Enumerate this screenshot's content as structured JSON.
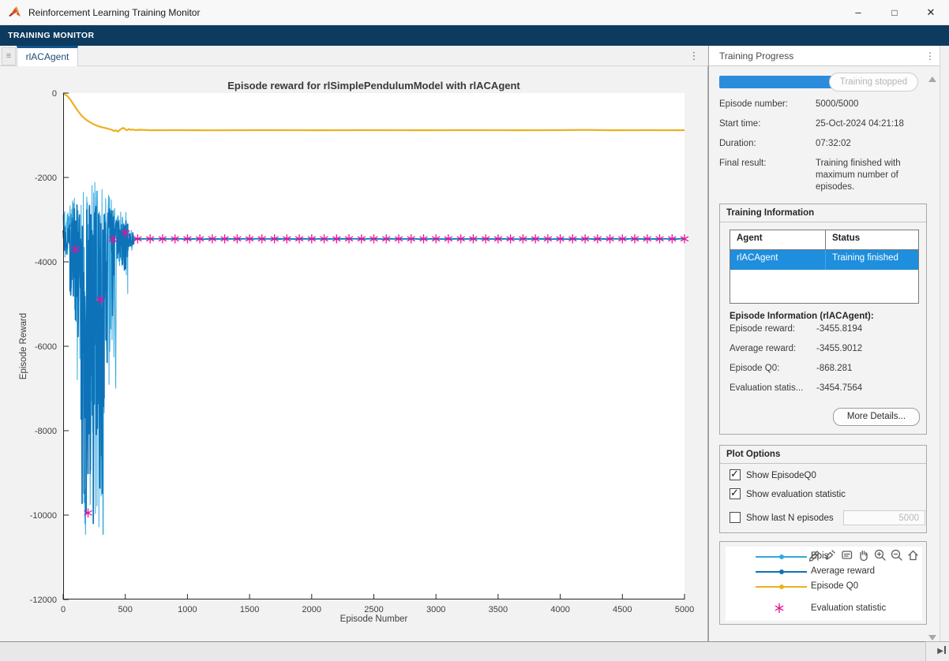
{
  "window": {
    "title": "Reinforcement Learning Training Monitor",
    "minimize": "–",
    "maximize": "□",
    "close": "✕"
  },
  "toolstrip": {
    "tab_label": "TRAINING MONITOR"
  },
  "doc_tabs": {
    "active_tab": "rlACAgent",
    "grip_glyph": "≡",
    "overflow_glyph": "⋮"
  },
  "colors": {
    "accent_navy": "#0d3a5f",
    "progress_blue": "#2a8cdb",
    "selected_row_blue": "#1e8edd",
    "episode_reward": "#35a8de",
    "average_reward": "#0d72b8",
    "episode_q0": "#edb120",
    "evaluation_statistic": "#e7119d"
  },
  "chart_data": {
    "type": "line",
    "title": "Episode reward for rlSimplePendulumModel with rlACAgent",
    "xlabel": "Episode Number",
    "ylabel": "Episode Reward",
    "xlim": [
      0,
      5000
    ],
    "ylim": [
      -12000,
      0
    ],
    "xticks": [
      0,
      500,
      1000,
      1500,
      2000,
      2500,
      3000,
      3500,
      4000,
      4500,
      5000
    ],
    "yticks": [
      0,
      -2000,
      -4000,
      -6000,
      -8000,
      -10000,
      -12000
    ],
    "grid": false,
    "background": "#ffffff",
    "segment_format": "[x_start, x_end, step, top_envelope, bottom_envelope, depth_bias, jitter]",
    "series": [
      {
        "name": "Episode reward",
        "color": "#35a8de",
        "width": 1,
        "seed": 7,
        "noise_segments": [
          [
            0,
            55,
            3,
            -2950,
            -3950,
            2.0,
            300
          ],
          [
            55,
            90,
            3,
            -2500,
            -5300,
            2.0,
            300
          ],
          [
            90,
            145,
            3,
            -2350,
            -7300,
            1.8,
            300
          ],
          [
            145,
            330,
            2.5,
            -2250,
            -10600,
            1.35,
            300
          ],
          [
            330,
            430,
            3,
            -2500,
            -7200,
            2.0,
            300
          ],
          [
            430,
            520,
            3,
            -2900,
            -4700,
            2.0,
            250
          ],
          [
            520,
            568,
            4,
            -3250,
            -3750,
            1.8,
            120
          ]
        ],
        "flat": {
          "from": 568,
          "to": 5000,
          "y": -3455.8,
          "jitter": 14
        }
      },
      {
        "name": "Average reward",
        "color": "#0d72b8",
        "width": 1.7,
        "seed": 99,
        "noise_segments": [
          [
            0,
            55,
            3,
            -3150,
            -3850,
            2.0,
            200
          ],
          [
            55,
            90,
            3,
            -2850,
            -4900,
            2.0,
            220
          ],
          [
            90,
            145,
            3,
            -2750,
            -6700,
            1.8,
            220
          ],
          [
            145,
            330,
            2.5,
            -2650,
            -10400,
            1.4,
            260
          ],
          [
            330,
            430,
            3,
            -2850,
            -6500,
            2.0,
            240
          ],
          [
            430,
            520,
            3,
            -3050,
            -4350,
            2.0,
            180
          ],
          [
            520,
            568,
            4,
            -3350,
            -3620,
            1.8,
            90
          ]
        ],
        "flat": {
          "from": 568,
          "to": 5000,
          "y": -3455.9,
          "jitter": 4
        }
      },
      {
        "name": "Episode Q0",
        "color": "#edb120",
        "width": 2.2,
        "points": [
          [
            0,
            -10
          ],
          [
            30,
            -60
          ],
          [
            60,
            -160
          ],
          [
            90,
            -300
          ],
          [
            120,
            -430
          ],
          [
            150,
            -540
          ],
          [
            180,
            -620
          ],
          [
            210,
            -680
          ],
          [
            240,
            -730
          ],
          [
            270,
            -770
          ],
          [
            300,
            -800
          ],
          [
            330,
            -820
          ],
          [
            360,
            -845
          ],
          [
            390,
            -870
          ],
          [
            410,
            -900
          ],
          [
            425,
            -880
          ],
          [
            440,
            -915
          ],
          [
            455,
            -875
          ],
          [
            470,
            -845
          ],
          [
            485,
            -825
          ],
          [
            500,
            -860
          ],
          [
            515,
            -880
          ],
          [
            530,
            -850
          ],
          [
            545,
            -875
          ],
          [
            560,
            -862
          ],
          [
            580,
            -878
          ],
          [
            620,
            -870
          ],
          [
            700,
            -880
          ],
          [
            900,
            -878
          ],
          [
            1200,
            -882
          ],
          [
            1600,
            -879
          ],
          [
            2000,
            -881
          ],
          [
            2400,
            -878
          ],
          [
            2800,
            -880
          ],
          [
            3200,
            -879
          ],
          [
            3600,
            -881
          ],
          [
            4000,
            -879
          ],
          [
            4200,
            -872
          ],
          [
            4400,
            -880
          ],
          [
            4700,
            -878
          ],
          [
            5000,
            -880
          ]
        ]
      }
    ],
    "markers": {
      "name": "Evaluation statistic",
      "color": "#e7119d",
      "shape": "asterisk",
      "points_early": [
        [
          100,
          -3700
        ],
        [
          200,
          -9950
        ],
        [
          300,
          -4890
        ],
        [
          400,
          -3470
        ],
        [
          500,
          -3310
        ]
      ],
      "flat_range": {
        "from": 600,
        "to": 5000,
        "step": 100,
        "y": -3455
      }
    }
  },
  "progress_panel": {
    "title": "Training Progress",
    "overflow_glyph": "⋮",
    "stop_button": "Training stopped",
    "progress_pct": 100,
    "rows": [
      {
        "label": "Episode number:",
        "value": "5000/5000"
      },
      {
        "label": "Start time:",
        "value": "25-Oct-2024 04:21:18"
      },
      {
        "label": "Duration:",
        "value": "07:32:02"
      },
      {
        "label": "Final result:",
        "value": "Training finished with maximum number of episodes."
      }
    ]
  },
  "training_info": {
    "title": "Training Information",
    "table": {
      "headers": [
        "Agent",
        "Status"
      ],
      "rows": [
        {
          "agent": "rlACAgent",
          "status": "Training finished",
          "selected": true
        }
      ]
    },
    "episode_info_title": "Episode Information (rlACAgent):",
    "rows": [
      {
        "label": "Episode reward:",
        "value": "-3455.8194"
      },
      {
        "label": "Average reward:",
        "value": "-3455.9012"
      },
      {
        "label": "Episode Q0:",
        "value": "-868.281"
      },
      {
        "label": "Evaluation statis...",
        "value": "-3454.7564"
      }
    ],
    "more_details_button": "More Details..."
  },
  "plot_options": {
    "title": "Plot Options",
    "checkboxes": [
      {
        "label": "Show EpisodeQ0",
        "checked": true
      },
      {
        "label": "Show evaluation statistic",
        "checked": true
      },
      {
        "label": "Show last N episodes",
        "checked": false
      }
    ],
    "n_episodes_value": "5000"
  },
  "legend": {
    "entries": [
      {
        "label": "Epis",
        "type": "line",
        "color": "#35a8de"
      },
      {
        "label": "Average reward",
        "type": "line",
        "color": "#0d72b8"
      },
      {
        "label": "Episode Q0",
        "type": "line",
        "color": "#edb120"
      },
      {
        "label": "Evaluation statistic",
        "type": "star",
        "color": "#e7119d"
      }
    ],
    "toolbar_icons": [
      "export-icon",
      "brush-icon",
      "datatips-icon",
      "pan-icon",
      "zoom-in-icon",
      "zoom-out-icon",
      "home-icon"
    ]
  }
}
